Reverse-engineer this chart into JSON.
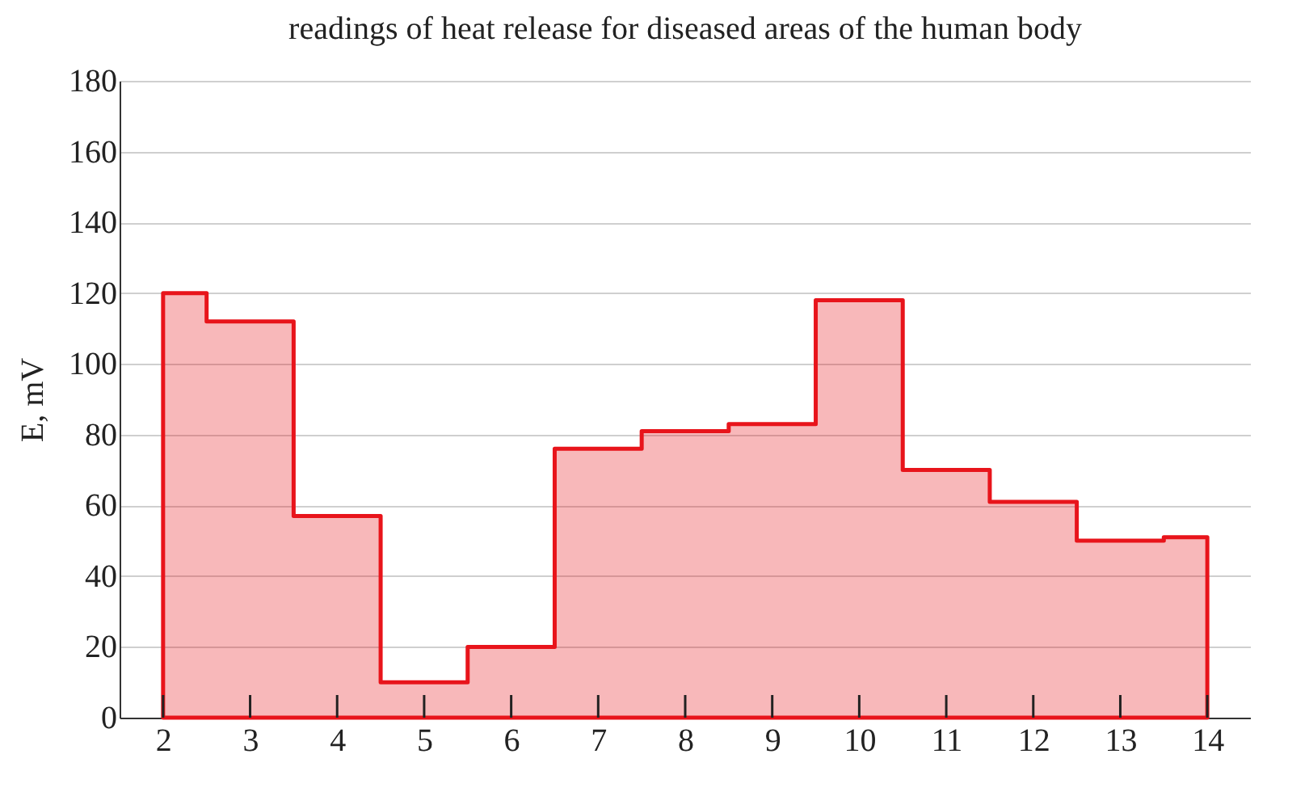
{
  "chart_data": {
    "type": "step",
    "title": "readings of heat release for diseased areas of the human body",
    "ylabel": "E, mV",
    "x": [
      2,
      3,
      4,
      5,
      6,
      7,
      8,
      9,
      10,
      11,
      12,
      13,
      14
    ],
    "series": [
      {
        "type": "area",
        "color": "#e8141b",
        "values": [
          120,
          112,
          57,
          10,
          20,
          76,
          81,
          83,
          118,
          70,
          61,
          50,
          51
        ]
      }
    ],
    "xlim": [
      1.5,
      14.5
    ],
    "xticks": [
      2,
      3,
      4,
      5,
      6,
      7,
      8,
      9,
      10,
      11,
      12,
      13,
      14
    ],
    "ylim": [
      0,
      180
    ],
    "yticks": [
      0,
      20,
      40,
      60,
      80,
      100,
      120,
      140,
      160,
      180
    ],
    "grid": "y",
    "line_style": "solid"
  }
}
